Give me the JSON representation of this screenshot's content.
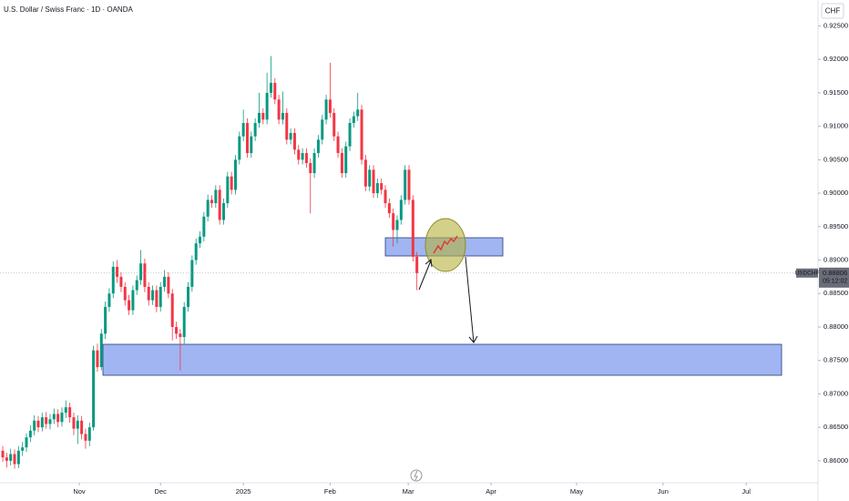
{
  "chart_data": {
    "type": "candlestick",
    "title": "U.S. Dollar / Swiss Franc · 1D · OANDA",
    "currency": "CHF",
    "symbol_tag": "USDCHF",
    "countdown": "05:12:02",
    "last_price": {
      "value": 0.88806,
      "label": "0.88806"
    },
    "up_color": "#089981",
    "down_color": "#f23645",
    "series": [
      {
        "open": [
          0.8615,
          0.8605,
          0.86,
          0.861,
          0.8595,
          0.8615,
          0.862,
          0.8635,
          0.8645,
          0.866,
          0.865,
          0.8665,
          0.8655,
          0.8662,
          0.867,
          0.8658,
          0.8672,
          0.868,
          0.8665,
          0.8648,
          0.866,
          0.864,
          0.863,
          0.865,
          0.8765,
          0.874,
          0.879,
          0.883,
          0.885,
          0.889,
          0.8875,
          0.886,
          0.884,
          0.8825,
          0.8855,
          0.887,
          0.8895,
          0.886,
          0.884,
          0.8855,
          0.883,
          0.886,
          0.8875,
          0.885,
          0.88,
          0.879,
          0.8785,
          0.883,
          0.886,
          0.89,
          0.8925,
          0.8935,
          0.8965,
          0.899,
          0.8985,
          0.9005,
          0.896,
          0.8985,
          0.9025,
          0.9005,
          0.905,
          0.9085,
          0.9105,
          0.906,
          0.9085,
          0.9105,
          0.912,
          0.911,
          0.915,
          0.9165,
          0.914,
          0.911,
          0.912,
          0.908,
          0.909,
          0.9065,
          0.905,
          0.906,
          0.9045,
          0.903,
          0.906,
          0.908,
          0.911,
          0.914,
          0.912,
          0.9085,
          0.906,
          0.903,
          0.907,
          0.9105,
          0.9115,
          0.9125,
          0.905,
          0.901,
          0.9035,
          0.9,
          0.9015,
          0.9005,
          0.8985,
          0.897,
          0.8945,
          0.896,
          0.899,
          0.9035,
          0.899,
          0.8905
        ],
        "high": [
          0.8622,
          0.8612,
          0.8618,
          0.8617,
          0.8622,
          0.8628,
          0.8641,
          0.8653,
          0.8668,
          0.8667,
          0.8672,
          0.8673,
          0.867,
          0.8678,
          0.8677,
          0.868,
          0.869,
          0.8687,
          0.8672,
          0.8668,
          0.8667,
          0.8648,
          0.8657,
          0.8772,
          0.8775,
          0.8797,
          0.8838,
          0.8858,
          0.8898,
          0.89,
          0.8882,
          0.8867,
          0.8848,
          0.8862,
          0.8877,
          0.8915,
          0.8902,
          0.8867,
          0.8862,
          0.8862,
          0.8867,
          0.8885,
          0.8882,
          0.8857,
          0.8808,
          0.8797,
          0.8837,
          0.8867,
          0.8907,
          0.8932,
          0.8943,
          0.8972,
          0.8998,
          0.8997,
          0.9012,
          0.9012,
          0.8992,
          0.9032,
          0.9032,
          0.9057,
          0.9092,
          0.9125,
          0.9112,
          0.9092,
          0.9112,
          0.915,
          0.9127,
          0.918,
          0.9205,
          0.9172,
          0.9147,
          0.9152,
          0.9127,
          0.9097,
          0.9097,
          0.9072,
          0.9067,
          0.9067,
          0.9052,
          0.9067,
          0.9087,
          0.9117,
          0.9147,
          0.9195,
          0.9127,
          0.9092,
          0.9067,
          0.9077,
          0.9112,
          0.9122,
          0.915,
          0.9132,
          0.9057,
          0.9042,
          0.9042,
          0.9022,
          0.9022,
          0.9012,
          0.8992,
          0.8977,
          0.8967,
          0.8997,
          0.9042,
          0.9042,
          0.8997,
          0.8912
        ],
        "low": [
          0.8598,
          0.859,
          0.8593,
          0.8588,
          0.8589,
          0.8607,
          0.8613,
          0.8628,
          0.8638,
          0.8643,
          0.8644,
          0.8648,
          0.8647,
          0.8655,
          0.865,
          0.8651,
          0.8664,
          0.8657,
          0.8638,
          0.8625,
          0.8632,
          0.8618,
          0.8622,
          0.8645,
          0.8733,
          0.8735,
          0.8782,
          0.8823,
          0.8843,
          0.8866,
          0.8852,
          0.8832,
          0.8818,
          0.8818,
          0.8848,
          0.8863,
          0.8852,
          0.8832,
          0.8833,
          0.8822,
          0.8823,
          0.8853,
          0.8843,
          0.878,
          0.8782,
          0.8735,
          0.8775,
          0.8823,
          0.8853,
          0.8893,
          0.8918,
          0.8928,
          0.8958,
          0.8978,
          0.8978,
          0.8953,
          0.8953,
          0.8978,
          0.8998,
          0.8998,
          0.9043,
          0.9078,
          0.9053,
          0.9053,
          0.9078,
          0.9098,
          0.9103,
          0.9103,
          0.9143,
          0.9133,
          0.9103,
          0.9103,
          0.9073,
          0.9073,
          0.9058,
          0.9043,
          0.9043,
          0.9038,
          0.897,
          0.9023,
          0.9053,
          0.9073,
          0.9103,
          0.9113,
          0.9078,
          0.9053,
          0.9023,
          0.9023,
          0.9063,
          0.9098,
          0.9108,
          0.9043,
          0.9003,
          0.9003,
          0.8993,
          0.8993,
          0.8998,
          0.8978,
          0.8963,
          0.892,
          0.8925,
          0.8953,
          0.8983,
          0.8983,
          0.8898,
          0.8855
        ],
        "close": [
          0.8605,
          0.86,
          0.861,
          0.8595,
          0.8615,
          0.862,
          0.8635,
          0.8645,
          0.866,
          0.865,
          0.8665,
          0.8655,
          0.8662,
          0.867,
          0.8658,
          0.8672,
          0.868,
          0.8665,
          0.8648,
          0.866,
          0.864,
          0.863,
          0.865,
          0.8765,
          0.874,
          0.879,
          0.883,
          0.885,
          0.889,
          0.8875,
          0.886,
          0.884,
          0.8825,
          0.8855,
          0.887,
          0.8895,
          0.886,
          0.884,
          0.8855,
          0.883,
          0.886,
          0.8875,
          0.885,
          0.88,
          0.879,
          0.8785,
          0.883,
          0.886,
          0.89,
          0.8925,
          0.8935,
          0.8965,
          0.899,
          0.8985,
          0.9005,
          0.896,
          0.8985,
          0.9025,
          0.9005,
          0.905,
          0.9085,
          0.9105,
          0.906,
          0.9085,
          0.9105,
          0.912,
          0.911,
          0.915,
          0.9165,
          0.914,
          0.911,
          0.912,
          0.908,
          0.909,
          0.9065,
          0.905,
          0.906,
          0.9045,
          0.903,
          0.906,
          0.908,
          0.911,
          0.914,
          0.912,
          0.9085,
          0.906,
          0.903,
          0.907,
          0.9105,
          0.9115,
          0.9125,
          0.905,
          0.901,
          0.9035,
          0.9,
          0.9015,
          0.9005,
          0.8985,
          0.897,
          0.8945,
          0.896,
          0.899,
          0.9035,
          0.899,
          0.8905,
          0.88806
        ]
      }
    ],
    "xlim": [
      -0.7,
      206.7
    ],
    "xticks": [
      {
        "value": 19.4,
        "label": "Nov"
      },
      {
        "value": 40,
        "label": "Dec"
      },
      {
        "value": 61,
        "label": "2025"
      },
      {
        "value": 83,
        "label": "Feb"
      },
      {
        "value": 102.8,
        "label": "Mar"
      },
      {
        "value": 123.8,
        "label": "Apr"
      },
      {
        "value": 145.5,
        "label": "May"
      },
      {
        "value": 167.4,
        "label": "Jun"
      },
      {
        "value": 188.5,
        "label": "Jul"
      }
    ],
    "ylim": [
      0.85671,
      0.92888
    ],
    "yticks": [
      {
        "value": 0.86,
        "label": "0.86000"
      },
      {
        "value": 0.865,
        "label": "0.86500"
      },
      {
        "value": 0.87,
        "label": "0.87000"
      },
      {
        "value": 0.875,
        "label": "0.87500"
      },
      {
        "value": 0.88,
        "label": "0.88000"
      },
      {
        "value": 0.885,
        "label": "0.88500"
      },
      {
        "value": 0.89,
        "label": "0.89000"
      },
      {
        "value": 0.895,
        "label": "0.89500"
      },
      {
        "value": 0.9,
        "label": "0.90000"
      },
      {
        "value": 0.905,
        "label": "0.90500"
      },
      {
        "value": 0.91,
        "label": "0.91000"
      },
      {
        "value": 0.915,
        "label": "0.91500"
      },
      {
        "value": 0.92,
        "label": "0.92000"
      },
      {
        "value": 0.925,
        "label": "0.92500"
      }
    ]
  }
}
